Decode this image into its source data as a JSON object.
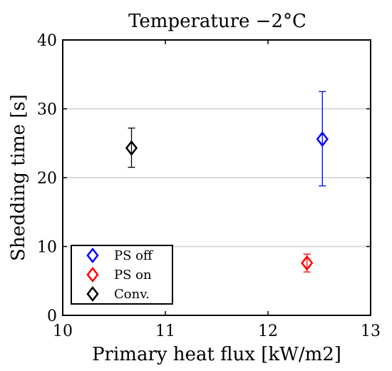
{
  "chart_data": {
    "type": "scatter",
    "title": "Temperature −2°C",
    "xlabel": "Primary heat flux [kW/m2]",
    "ylabel": "Shedding time [s]",
    "xlim": [
      10,
      13
    ],
    "ylim": [
      0,
      40
    ],
    "x_ticks": [
      "10",
      "11",
      "12",
      "13"
    ],
    "y_ticks": [
      "0",
      "10",
      "20",
      "30",
      "40"
    ],
    "grid": "horizontal",
    "legend_position": "bottom-left",
    "series": [
      {
        "name": "PS off",
        "color": "#0000ff",
        "marker": "diamond",
        "x": 12.53,
        "y": 25.6,
        "y_err_low": 18.8,
        "y_err_high": 32.5
      },
      {
        "name": "PS on",
        "color": "#ff0000",
        "marker": "diamond",
        "x": 12.38,
        "y": 7.6,
        "y_err_low": 6.3,
        "y_err_high": 8.9
      },
      {
        "name": "Conv.",
        "color": "#000000",
        "marker": "diamond",
        "x": 10.67,
        "y": 24.3,
        "y_err_low": 21.5,
        "y_err_high": 27.2
      }
    ]
  }
}
